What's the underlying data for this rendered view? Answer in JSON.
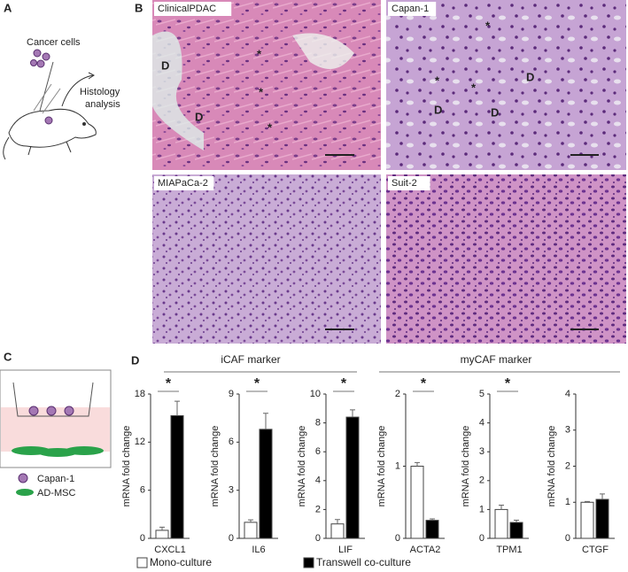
{
  "panels": {
    "a": "A",
    "b": "B",
    "c": "C",
    "d": "D"
  },
  "panel_a": {
    "cells": "Cancer cells",
    "analysis_lines": [
      "Histology",
      "analysis"
    ]
  },
  "images": [
    {
      "label": "ClinicalPDAC",
      "marks": [
        "D",
        "D",
        "*",
        "*",
        "*"
      ]
    },
    {
      "label": "Capan-1",
      "marks": [
        "*",
        "*",
        "*",
        "D",
        "D",
        "D"
      ]
    },
    {
      "label": "MIAPaCa-2"
    },
    {
      "label": "Suit-2"
    }
  ],
  "panel_c": {
    "cells": "Capan-1",
    "msc": "AD-MSC"
  },
  "groups": [
    "iCAF marker",
    "myCAF marker"
  ],
  "legend": [
    {
      "name": "Mono-culture",
      "color": "#ffffff"
    },
    {
      "name": "Transwell co-culture",
      "color": "#000000"
    }
  ],
  "chart_data": [
    {
      "type": "bar",
      "xlabel": "CXCL1",
      "ylabel": "mRNA fold change",
      "values": [
        1,
        15.3
      ],
      "errors": [
        0.4,
        1.8
      ],
      "ylim": [
        0,
        18
      ],
      "yticks": [
        0,
        6,
        12,
        18
      ],
      "significance": "*"
    },
    {
      "type": "bar",
      "xlabel": "IL6",
      "ylabel": "mRNA fold change",
      "values": [
        1,
        6.8
      ],
      "errors": [
        0.15,
        1
      ],
      "ylim": [
        0,
        9
      ],
      "yticks": [
        0,
        3,
        6,
        9
      ],
      "significance": "*"
    },
    {
      "type": "bar",
      "xlabel": "LIF",
      "ylabel": "mRNA fold change",
      "values": [
        1,
        8.4
      ],
      "errors": [
        0.3,
        0.5
      ],
      "ylim": [
        0,
        10
      ],
      "yticks": [
        0,
        2,
        4,
        6,
        8,
        10
      ],
      "significance": "*"
    },
    {
      "type": "bar",
      "xlabel": "ACTA2",
      "ylabel": "mRNA fold change",
      "values": [
        1,
        0.25
      ],
      "errors": [
        0.05,
        0.02
      ],
      "ylim": [
        0,
        2
      ],
      "yticks": [
        0,
        1,
        2
      ],
      "significance": "*"
    },
    {
      "type": "bar",
      "xlabel": "TPM1",
      "ylabel": "mRNA fold change",
      "values": [
        1,
        0.55
      ],
      "errors": [
        0.15,
        0.08
      ],
      "ylim": [
        0,
        5
      ],
      "yticks": [
        0,
        1,
        2,
        3,
        4,
        5
      ],
      "significance": "*"
    },
    {
      "type": "bar",
      "xlabel": "CTGF",
      "ylabel": "mRNA fold change",
      "values": [
        1,
        1.08
      ],
      "errors": [
        0.02,
        0.15
      ],
      "ylim": [
        0,
        4
      ],
      "yticks": [
        0,
        1,
        2,
        3,
        4
      ]
    }
  ]
}
